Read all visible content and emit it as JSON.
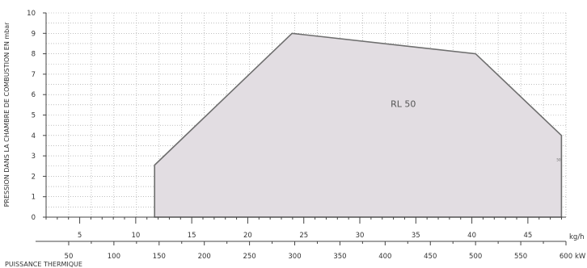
{
  "chart_data": {
    "type": "area",
    "title": "",
    "ylabel": "PRESSION DANS LA CHAMBRE DE COMBUSTION EN mbar",
    "xlabel": "PUISSANCE THERMIQUE",
    "ylim": [
      0,
      10
    ],
    "y_ticks": [
      "0",
      "1",
      "2",
      "3",
      "4",
      "5",
      "6",
      "7",
      "8",
      "9",
      "10"
    ],
    "x_axes": [
      {
        "unit": "kg/h",
        "range": [
          2.0,
          48.4
        ],
        "ticks": [
          5,
          10,
          15,
          20,
          25,
          30,
          35,
          40,
          45
        ],
        "tick_labels": [
          "5",
          "10",
          "15",
          "20",
          "25",
          "30",
          "35",
          "40",
          "45"
        ]
      },
      {
        "unit": "kW",
        "range": [
          25,
          600
        ],
        "ticks": [
          50,
          100,
          150,
          200,
          250,
          300,
          350,
          400,
          450,
          500,
          550,
          600
        ],
        "tick_labels": [
          "50",
          "100",
          "150",
          "200",
          "250",
          "300",
          "350",
          "400",
          "450",
          "500",
          "550",
          "600"
        ]
      }
    ],
    "x_unit_for_series": "kW",
    "series": [
      {
        "name": "RL 50",
        "points": [
          {
            "x": 145,
            "y": 0
          },
          {
            "x": 145,
            "y": 2.55
          },
          {
            "x": 297,
            "y": 9.0
          },
          {
            "x": 500,
            "y": 8.0
          },
          {
            "x": 595,
            "y": 4.0
          },
          {
            "x": 595,
            "y": 0
          }
        ]
      }
    ],
    "annotations": [
      "50"
    ],
    "grid": true,
    "legend": "none",
    "colors": {
      "fill": "#e2dde2",
      "outline": "#6e6e6e",
      "grid": "#9a9a9a",
      "axis": "#444444"
    }
  }
}
